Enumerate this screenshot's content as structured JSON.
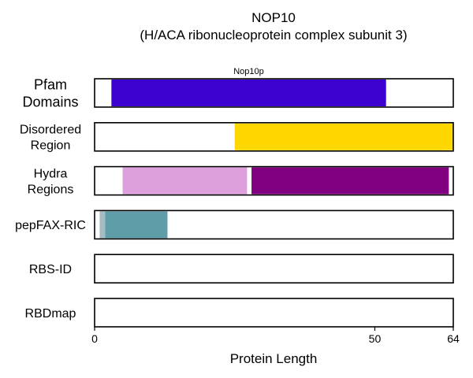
{
  "chart_data": {
    "type": "bar",
    "title": "NOP10",
    "subtitle": "(H/ACA ribonucleoprotein complex subunit 3)",
    "xlabel": "Protein Length",
    "xlim": [
      0,
      64
    ],
    "xticks": [
      0,
      50,
      64
    ],
    "tracks": [
      {
        "label": [
          "Pfam",
          "Domains"
        ],
        "segments": [
          {
            "start": 3,
            "end": 52,
            "color": "#3c00cf",
            "label": "Nop10p"
          }
        ]
      },
      {
        "label": [
          "Disordered",
          "Region"
        ],
        "segments": [
          {
            "start": 25,
            "end": 64,
            "color": "#ffd700"
          }
        ]
      },
      {
        "label": [
          "Hydra",
          "Regions"
        ],
        "segments": [
          {
            "start": 5,
            "end": 27.2,
            "color": "#dda0dd"
          },
          {
            "start": 28,
            "end": 63.2,
            "color": "#800080"
          }
        ]
      },
      {
        "label": [
          "pepFAX-RIC"
        ],
        "segments": [
          {
            "start": 0.9,
            "end": 1.9,
            "color": "#a6bcc4"
          },
          {
            "start": 1.9,
            "end": 13,
            "color": "#5f9ea8"
          }
        ]
      },
      {
        "label": [
          "RBS-ID"
        ],
        "segments": []
      },
      {
        "label": [
          "RBDmap"
        ],
        "segments": []
      }
    ]
  }
}
